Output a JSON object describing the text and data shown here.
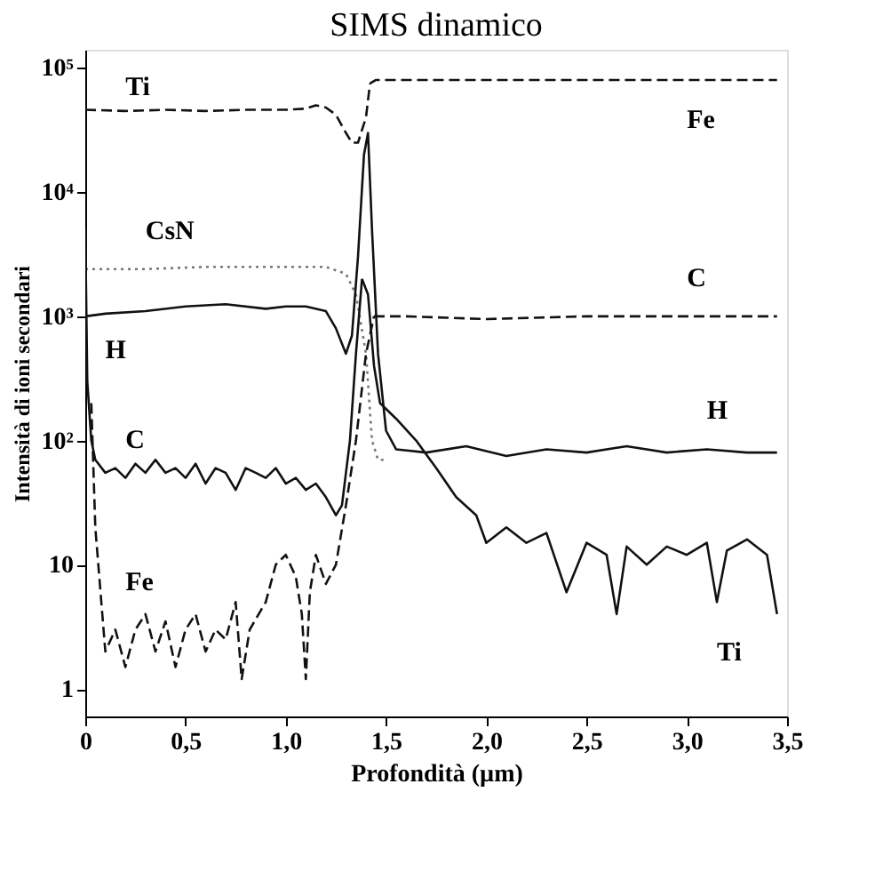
{
  "chart_data": {
    "type": "line",
    "title": "SIMS dinamico",
    "xlabel": "Profondità (µm)",
    "ylabel": "Intensità di ioni secondari",
    "log": "y",
    "grid": false,
    "legend": false,
    "marker": "none",
    "xlim": [
      0,
      3.5
    ],
    "ylim": [
      0.6,
      140000
    ],
    "xticks": [
      0,
      {
        "value": 0.5,
        "label": "0,5"
      },
      {
        "value": 1.0,
        "label": "1,0"
      },
      {
        "value": 1.5,
        "label": "1,5"
      },
      {
        "value": 2.0,
        "label": "2,0"
      },
      {
        "value": 2.5,
        "label": "2,5"
      },
      {
        "value": 3.0,
        "label": "3,0"
      },
      {
        "value": 3.5,
        "label": "3,5"
      }
    ],
    "yticks": [
      1,
      10,
      {
        "value": 100,
        "label": "10²"
      },
      {
        "value": 1000,
        "label": "10³"
      },
      {
        "value": 10000,
        "label": "10⁴"
      },
      {
        "value": 100000,
        "label": "10⁵"
      }
    ],
    "series": [
      {
        "name": "Ti",
        "color": "#111111",
        "line_style": "dashed",
        "x": [
          0,
          0.2,
          0.4,
          0.6,
          0.8,
          1.0,
          1.1,
          1.15,
          1.2,
          1.25,
          1.3,
          1.33,
          1.36,
          1.4,
          1.42
        ],
        "values": [
          46000,
          45000,
          46000,
          45000,
          46000,
          46000,
          47000,
          50000,
          48000,
          42000,
          30000,
          25000,
          25000,
          40000,
          75000
        ]
      },
      {
        "name": "Fe",
        "color": "#111111",
        "line_style": "dashed",
        "x": [
          1.42,
          1.45,
          1.6,
          2.0,
          2.5,
          3.0,
          3.45
        ],
        "values": [
          75000,
          80000,
          80000,
          80000,
          80000,
          80000,
          80000
        ]
      },
      {
        "name": "CsN",
        "color": "#777777",
        "line_style": "dotted",
        "x": [
          0,
          0.3,
          0.6,
          0.9,
          1.2,
          1.3,
          1.35,
          1.4,
          1.43,
          1.46,
          1.5
        ],
        "values": [
          2400,
          2400,
          2500,
          2500,
          2500,
          2200,
          1500,
          500,
          100,
          70,
          70
        ]
      },
      {
        "name": "H",
        "color": "#111111",
        "line_style": "solid",
        "x": [
          0,
          0.1,
          0.3,
          0.5,
          0.7,
          0.9,
          1.0,
          1.1,
          1.2,
          1.25,
          1.3,
          1.33,
          1.36,
          1.39,
          1.41,
          1.43,
          1.46,
          1.5,
          1.55,
          1.7,
          1.9,
          2.1,
          2.3,
          2.5,
          2.7,
          2.9,
          3.1,
          3.3,
          3.45
        ],
        "values": [
          1000,
          1050,
          1100,
          1200,
          1250,
          1150,
          1200,
          1200,
          1100,
          800,
          500,
          700,
          3000,
          20000,
          30000,
          5000,
          500,
          120,
          85,
          80,
          90,
          75,
          85,
          80,
          90,
          80,
          85,
          80,
          80
        ]
      },
      {
        "name": "C",
        "color": "#111111",
        "line_style": "solid",
        "x": [
          0,
          0.01,
          0.03,
          0.05,
          0.1,
          0.15,
          0.2,
          0.25,
          0.3,
          0.35,
          0.4,
          0.45,
          0.5,
          0.55,
          0.6,
          0.65,
          0.7,
          0.75,
          0.8,
          0.85,
          0.9,
          0.95,
          1.0,
          1.05,
          1.1,
          1.15,
          1.2,
          1.25,
          1.28,
          1.32,
          1.35,
          1.38
        ],
        "values": [
          5000,
          300,
          100,
          70,
          55,
          60,
          50,
          65,
          55,
          70,
          55,
          60,
          50,
          65,
          45,
          60,
          55,
          40,
          60,
          55,
          50,
          60,
          45,
          50,
          40,
          45,
          35,
          25,
          30,
          100,
          500,
          2000
        ]
      },
      {
        "name": "Ti",
        "color": "#111111",
        "line_style": "solid",
        "x": [
          1.38,
          1.41,
          1.44,
          1.47,
          1.55,
          1.65,
          1.75,
          1.85,
          1.95,
          2.0,
          2.1,
          2.2,
          2.3,
          2.4,
          2.5,
          2.6,
          2.65,
          2.7,
          2.8,
          2.9,
          3.0,
          3.1,
          3.15,
          3.2,
          3.3,
          3.4,
          3.45
        ],
        "values": [
          2000,
          1500,
          400,
          200,
          150,
          100,
          60,
          35,
          25,
          15,
          20,
          15,
          18,
          6,
          15,
          12,
          4,
          14,
          10,
          14,
          12,
          15,
          5,
          13,
          16,
          12,
          4
        ]
      },
      {
        "name": "Fe",
        "color": "#111111",
        "line_style": "dashed",
        "x": [
          0.03,
          0.05,
          0.08,
          0.1,
          0.15,
          0.2,
          0.25,
          0.3,
          0.35,
          0.4,
          0.45,
          0.5,
          0.55,
          0.6,
          0.65,
          0.7,
          0.75,
          0.78,
          0.82,
          0.9,
          0.95,
          1.0,
          1.05,
          1.08,
          1.1,
          1.12,
          1.15,
          1.2,
          1.25,
          1.3,
          1.35,
          1.4,
          1.44
        ],
        "values": [
          200,
          20,
          5,
          2,
          3,
          1.5,
          3,
          4,
          2,
          3.5,
          1.5,
          3,
          4,
          2,
          3,
          2.5,
          5,
          1.2,
          3,
          5,
          10,
          12,
          8,
          4,
          1.2,
          6,
          12,
          7,
          10,
          30,
          100,
          500,
          1000
        ]
      },
      {
        "name": "C",
        "color": "#111111",
        "line_style": "dashed",
        "x": [
          1.44,
          1.6,
          2.0,
          2.5,
          3.0,
          3.45
        ],
        "values": [
          1000,
          1000,
          950,
          1000,
          1000,
          1000
        ]
      }
    ]
  }
}
